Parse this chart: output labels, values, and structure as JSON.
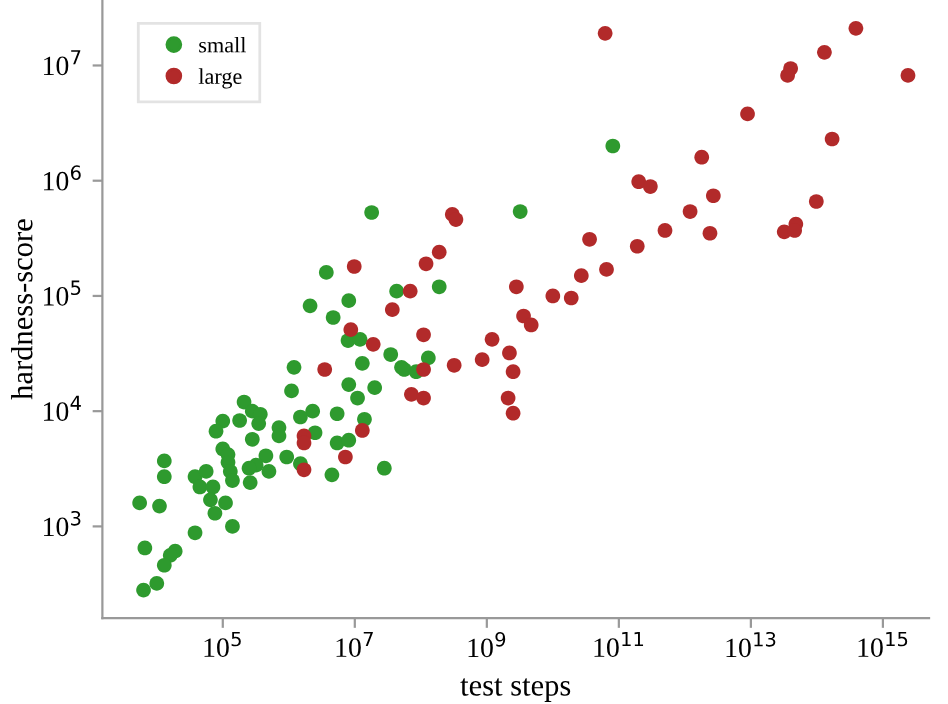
{
  "chart_data": {
    "type": "scatter",
    "xlabel": "test steps",
    "ylabel": "hardness-score",
    "log": "xy",
    "legend": "top left",
    "grid": false,
    "marker": "circle",
    "xlim": [
      1500,
      5000000000000000.0
    ],
    "ylim": [
      160,
      37000000.0
    ],
    "xticks": [
      {
        "value": 100000.0,
        "label": "10$^{5}$"
      },
      {
        "value": 10000000.0,
        "label": "10$^{7}$"
      },
      {
        "value": 1000000000.0,
        "label": "10$^{9}$"
      },
      {
        "value": 100000000000.0,
        "label": "10$^{11}$"
      },
      {
        "value": 10000000000000.0,
        "label": "10$^{13}$"
      },
      {
        "value": 1000000000000000.0,
        "label": "10$^{15}$"
      }
    ],
    "yticks": [
      {
        "value": 1000.0,
        "label": "10$^{3}$"
      },
      {
        "value": 10000.0,
        "label": "10$^{4}$"
      },
      {
        "value": 100000.0,
        "label": "10$^{5}$"
      },
      {
        "value": 1000000.0,
        "label": "10$^{6}$"
      },
      {
        "value": 10000000.0,
        "label": "10$^{7}$"
      }
    ],
    "series": [
      {
        "name": "small",
        "color": "#2e9a2e",
        "x": [
          2100000.0,
          4700000.0,
          8100000.0,
          7900000.0,
          12000000.0,
          13000000.0,
          35000000.0,
          51000000.0,
          1200000.0,
          8100000.0,
          20000000.0,
          1100000.0,
          11000000.0,
          210000.0,
          280000.0,
          2300000.0,
          1500000.0,
          5400000.0,
          370000.0,
          100000.0,
          180000.0,
          350000.0,
          79000.0,
          710000.0,
          710000.0,
          2500000.0,
          14000000.0,
          280000.0,
          100000.0,
          120000.0,
          5400000.0,
          8100000.0,
          930000.0,
          1500000.0,
          450000.0,
          320000.0,
          250000.0,
          500000.0,
          120000.0,
          130000.0,
          13000.0,
          13000.0,
          38000.0,
          56000.0,
          45000.0,
          71000.0,
          140000.0,
          260000.0,
          65000.0,
          110000.0,
          76000.0,
          140000.0,
          38000.0,
          5500.0,
          11000.0,
          6600.0,
          19000.0,
          16000.0,
          13000.0,
          6300.0,
          10000.0,
          4500000.0,
          28000000.0,
          18000000.0,
          3200000000.0,
          3700000.0,
          43000000.0,
          190000000.0,
          130000000.0,
          56000000.0,
          85000000.0,
          81000000000.0
        ],
        "values": [
          82000.0,
          65000.0,
          91000.0,
          41000.0,
          42000.0,
          26000.0,
          31000.0,
          24000.0,
          24000.0,
          17000.0,
          16000.0,
          15000.0,
          13000.0,
          12000.0,
          10000.0,
          10000.0,
          8900.0,
          9500.0,
          9400.0,
          8200.0,
          8300.0,
          7800.0,
          6700.0,
          7200.0,
          6100.0,
          6500.0,
          8500.0,
          5700.0,
          4700.0,
          4200.0,
          5300.0,
          5600.0,
          4000.0,
          3500.0,
          4100.0,
          3400.0,
          3200.0,
          3000.0,
          3600.0,
          3000.0,
          3700.0,
          2700.0,
          2700.0,
          3000.0,
          2200.0,
          2200.0,
          2500.0,
          2400.0,
          1700.0,
          1600.0,
          1300.0,
          1000.0,
          880,
          1600.0,
          1500.0,
          650,
          610,
          560,
          460,
          280,
          320,
          2800.0,
          3200.0,
          530000.0,
          540000.0,
          160000.0,
          110000.0,
          120000.0,
          29000.0,
          23000.0,
          22000.0,
          2000000.0
        ]
      },
      {
        "name": "large",
        "color": "#b22a2a",
        "x": [
          37000000.0,
          8700000.0,
          19000000.0,
          3500000.0,
          13000000.0,
          1700000.0,
          1700000.0,
          7200000.0,
          1700000.0,
          300000000.0,
          340000000.0,
          9800000.0,
          120000000.0,
          190000000.0,
          69000000.0,
          2800000000.0,
          10000000000.0,
          19000000000.0,
          27000000000.0,
          36000000000.0,
          65000000000.0,
          3600000000.0,
          4700000000.0,
          110000000.0,
          1200000000.0,
          850000000.0,
          2200000000.0,
          2500000000.0,
          320000000.0,
          110000000.0,
          72000000.0,
          110000000.0,
          2100000000.0,
          2500000000.0,
          62000000000.0,
          390000000000000.0,
          130000000000000.0,
          40000000000000.0,
          36000000000000.0,
          2400000000000000.0,
          8900000000000.0,
          170000000000000.0,
          1800000000000.0,
          200000000000.0,
          300000000000.0,
          2700000000000.0,
          1200000000000.0,
          98000000000000.0,
          500000000000.0,
          2400000000000.0,
          32000000000000.0,
          40000000000000.0,
          48000000000000.0,
          46000000000000.0,
          190000000000.0
        ],
        "values": [
          76000.0,
          51000.0,
          38000.0,
          23000.0,
          6800.0,
          6100.0,
          5300.0,
          4000.0,
          3100.0,
          510000.0,
          460000.0,
          180000.0,
          190000.0,
          240000.0,
          110000.0,
          120000.0,
          100000.0,
          96000.0,
          150000.0,
          310000.0,
          170000.0,
          67000.0,
          56000.0,
          46000.0,
          42000.0,
          28000.0,
          32000.0,
          22000.0,
          25000.0,
          23000.0,
          14000.0,
          13000.0,
          13000.0,
          9600.0,
          19000000.0,
          21000000.0,
          13000000.0,
          9400000.0,
          8200000.0,
          8200000.0,
          3800000.0,
          2300000.0,
          1600000.0,
          980000.0,
          890000.0,
          740000.0,
          540000.0,
          660000.0,
          370000.0,
          350000.0,
          360000.0,
          null,
          420000.0,
          370000.0,
          270000.0
        ]
      }
    ]
  }
}
